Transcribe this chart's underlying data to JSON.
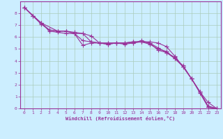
{
  "background_color": "#cceeff",
  "grid_color": "#aaccbb",
  "line_color": "#993399",
  "marker": "+",
  "xlabel": "Windchill (Refroidissement éolien,°C)",
  "xlim": [
    -0.5,
    23.5
  ],
  "ylim": [
    0,
    9
  ],
  "series": [
    {
      "x": [
        0,
        1,
        2,
        3,
        4,
        5,
        6,
        7,
        8,
        9,
        10,
        11,
        12,
        13,
        14,
        15,
        16,
        17,
        18,
        19,
        20,
        21,
        22,
        23
      ],
      "y": [
        8.5,
        7.8,
        7.2,
        6.5,
        6.4,
        6.3,
        6.3,
        5.7,
        5.6,
        5.5,
        5.5,
        5.5,
        5.5,
        5.6,
        5.6,
        5.4,
        5.0,
        4.8,
        4.2,
        3.5,
        2.5,
        1.4,
        0.1,
        0.0
      ]
    },
    {
      "x": [
        0,
        1,
        2,
        3,
        4,
        5,
        6,
        7,
        8,
        9,
        10,
        11,
        12,
        13,
        14,
        15,
        16,
        17,
        18,
        19,
        20,
        21,
        22,
        23
      ],
      "y": [
        8.5,
        7.8,
        7.1,
        6.6,
        6.5,
        6.5,
        6.4,
        6.3,
        6.1,
        5.5,
        5.5,
        5.5,
        5.5,
        5.6,
        5.6,
        5.6,
        5.5,
        5.2,
        4.4,
        3.5,
        2.5,
        1.4,
        0.5,
        0.0
      ]
    },
    {
      "x": [
        0,
        1,
        2,
        3,
        4,
        5,
        6,
        7,
        8,
        9,
        10,
        11,
        12,
        13,
        14,
        15,
        16,
        17,
        18,
        19,
        20,
        21,
        22,
        23
      ],
      "y": [
        8.5,
        7.8,
        7.2,
        6.6,
        6.5,
        6.5,
        6.3,
        5.3,
        5.5,
        5.5,
        5.4,
        5.5,
        5.5,
        5.5,
        5.7,
        5.5,
        4.9,
        4.7,
        4.3,
        3.5,
        2.5,
        1.4,
        0.2,
        0.0
      ]
    },
    {
      "x": [
        0,
        2,
        4,
        5,
        6,
        7,
        8,
        9,
        10,
        11,
        12,
        13,
        14,
        15,
        16,
        17,
        18,
        19,
        20,
        21,
        22,
        23
      ],
      "y": [
        8.5,
        7.2,
        6.5,
        6.5,
        6.3,
        6.3,
        5.6,
        5.5,
        5.4,
        5.5,
        5.4,
        5.5,
        5.6,
        5.5,
        5.1,
        4.7,
        4.2,
        3.6,
        2.5,
        1.3,
        0.1,
        0.0
      ]
    }
  ]
}
